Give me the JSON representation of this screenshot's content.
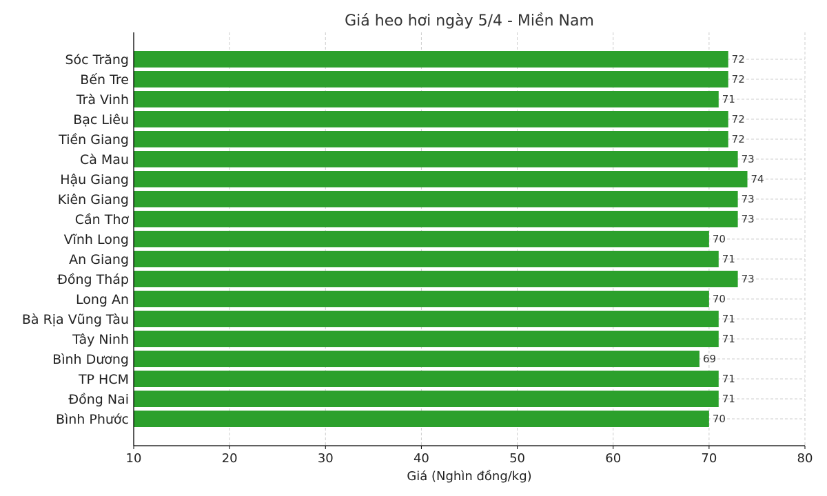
{
  "chart_data": {
    "type": "bar",
    "orientation": "horizontal",
    "title": "Giá heo hơi ngày 5/4 - Miền Nam",
    "xlabel": "Giá (Nghìn đồng/kg)",
    "ylabel": "",
    "xlim": [
      10,
      80
    ],
    "xticks": [
      10,
      20,
      30,
      40,
      50,
      60,
      70,
      80
    ],
    "grid": true,
    "bar_color": "#2ca02c",
    "categories": [
      "Sóc Trăng",
      "Bến Tre",
      "Trà Vinh",
      "Bạc Liêu",
      "Tiền Giang",
      "Cà Mau",
      "Hậu Giang",
      "Kiên Giang",
      "Cần Thơ",
      "Vĩnh Long",
      "An Giang",
      "Đồng Tháp",
      "Long An",
      "Bà Rịa  Vũng Tàu",
      "Tây Ninh",
      "Bình Dương",
      "TP HCM",
      "Đồng Nai",
      "Bình Phước"
    ],
    "values": [
      72,
      72,
      71,
      72,
      72,
      73,
      74,
      73,
      73,
      70,
      71,
      73,
      70,
      71,
      71,
      69,
      71,
      71,
      70
    ]
  }
}
